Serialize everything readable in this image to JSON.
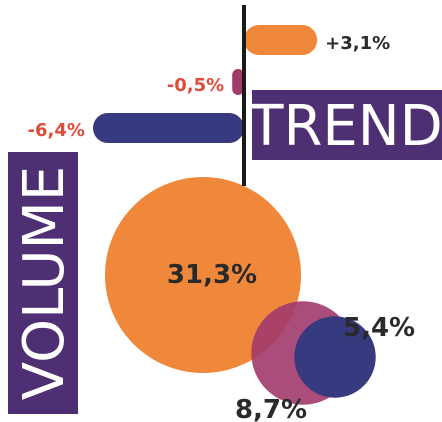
{
  "colors": {
    "orange": "#F0883C",
    "navy": "#373A7E",
    "magenta": "#A23A6B",
    "purple_box": "#4E2F74",
    "label_red": "#E24A3A",
    "label_dark": "#2A2A2A",
    "axis": "#1A1A1A"
  },
  "chart_data": [
    {
      "type": "bar",
      "orientation": "horizontal",
      "title": "TREND",
      "categories": [
        "orange",
        "magenta",
        "navy"
      ],
      "values": [
        3.1,
        -0.5,
        -6.4
      ],
      "value_labels": [
        "+3,1%",
        "-0,5%",
        "-6,4%"
      ],
      "colors": [
        "orange",
        "magenta",
        "navy"
      ]
    },
    {
      "type": "bubble",
      "title": "VOLUME",
      "values": [
        31.3,
        8.7,
        5.4
      ],
      "value_labels": [
        "31,3%",
        "8,7%",
        "5,4%"
      ],
      "colors": [
        "orange",
        "magenta",
        "navy"
      ]
    }
  ]
}
